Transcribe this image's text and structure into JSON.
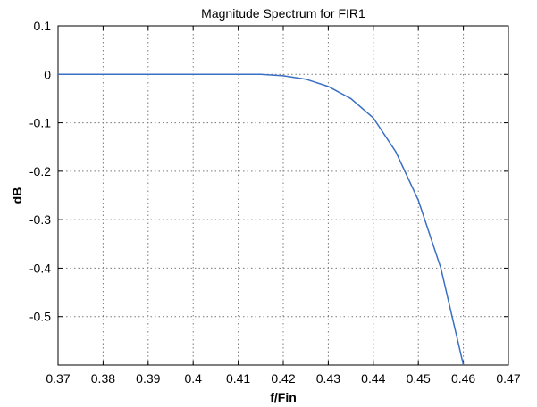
{
  "chart_data": {
    "type": "line",
    "title": "Magnitude Spectrum for FIR1",
    "xlabel": "f/Fin",
    "ylabel": "dB",
    "xlim": [
      0.37,
      0.47
    ],
    "ylim": [
      -0.6,
      0.1
    ],
    "grid": true,
    "x_ticks": [
      0.37,
      0.38,
      0.39,
      0.4,
      0.41,
      0.42,
      0.43,
      0.44,
      0.45,
      0.46,
      0.47
    ],
    "x_tick_labels": [
      "0.37",
      "0.38",
      "0.39",
      "0.4",
      "0.41",
      "0.42",
      "0.43",
      "0.44",
      "0.45",
      "0.46",
      "0.47"
    ],
    "y_ticks": [
      0.1,
      0,
      -0.1,
      -0.2,
      -0.3,
      -0.4,
      -0.5
    ],
    "y_tick_labels": [
      "0.1",
      "0",
      "-0.1",
      "-0.2",
      "-0.3",
      "-0.4",
      "-0.5"
    ],
    "series": [
      {
        "color": "#3a6fc4",
        "x": [
          0.37,
          0.375,
          0.38,
          0.39,
          0.4,
          0.41,
          0.415,
          0.42,
          0.425,
          0.43,
          0.435,
          0.44,
          0.445,
          0.45,
          0.455,
          0.46
        ],
        "y": [
          0.0,
          0.0,
          0.0,
          0.0,
          0.0,
          0.0,
          0.0,
          -0.003,
          -0.01,
          -0.025,
          -0.05,
          -0.09,
          -0.16,
          -0.26,
          -0.4,
          -0.6
        ]
      }
    ]
  }
}
